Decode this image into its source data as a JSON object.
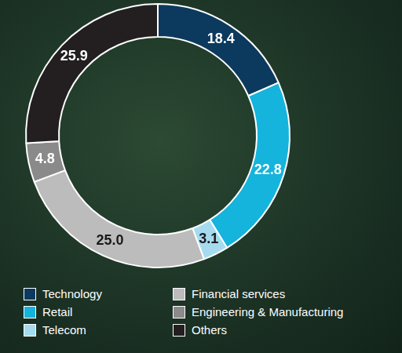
{
  "chart_data": {
    "type": "doughnut",
    "categories": [
      "Technology",
      "Retail",
      "Telecom",
      "Financial services",
      "Engineering & Manufacturing",
      "Others"
    ],
    "values": [
      18.4,
      22.8,
      3.1,
      25.0,
      4.8,
      25.9
    ],
    "value_labels": [
      "18.4",
      "22.8",
      "3.1",
      "25.0",
      "4.8",
      "25.9"
    ],
    "colors": [
      "#0c3a5e",
      "#14b4dc",
      "#a6dbef",
      "#bcbcbc",
      "#8a8a8a",
      "#231f20"
    ],
    "data_labels": true,
    "legend": "bottom"
  }
}
